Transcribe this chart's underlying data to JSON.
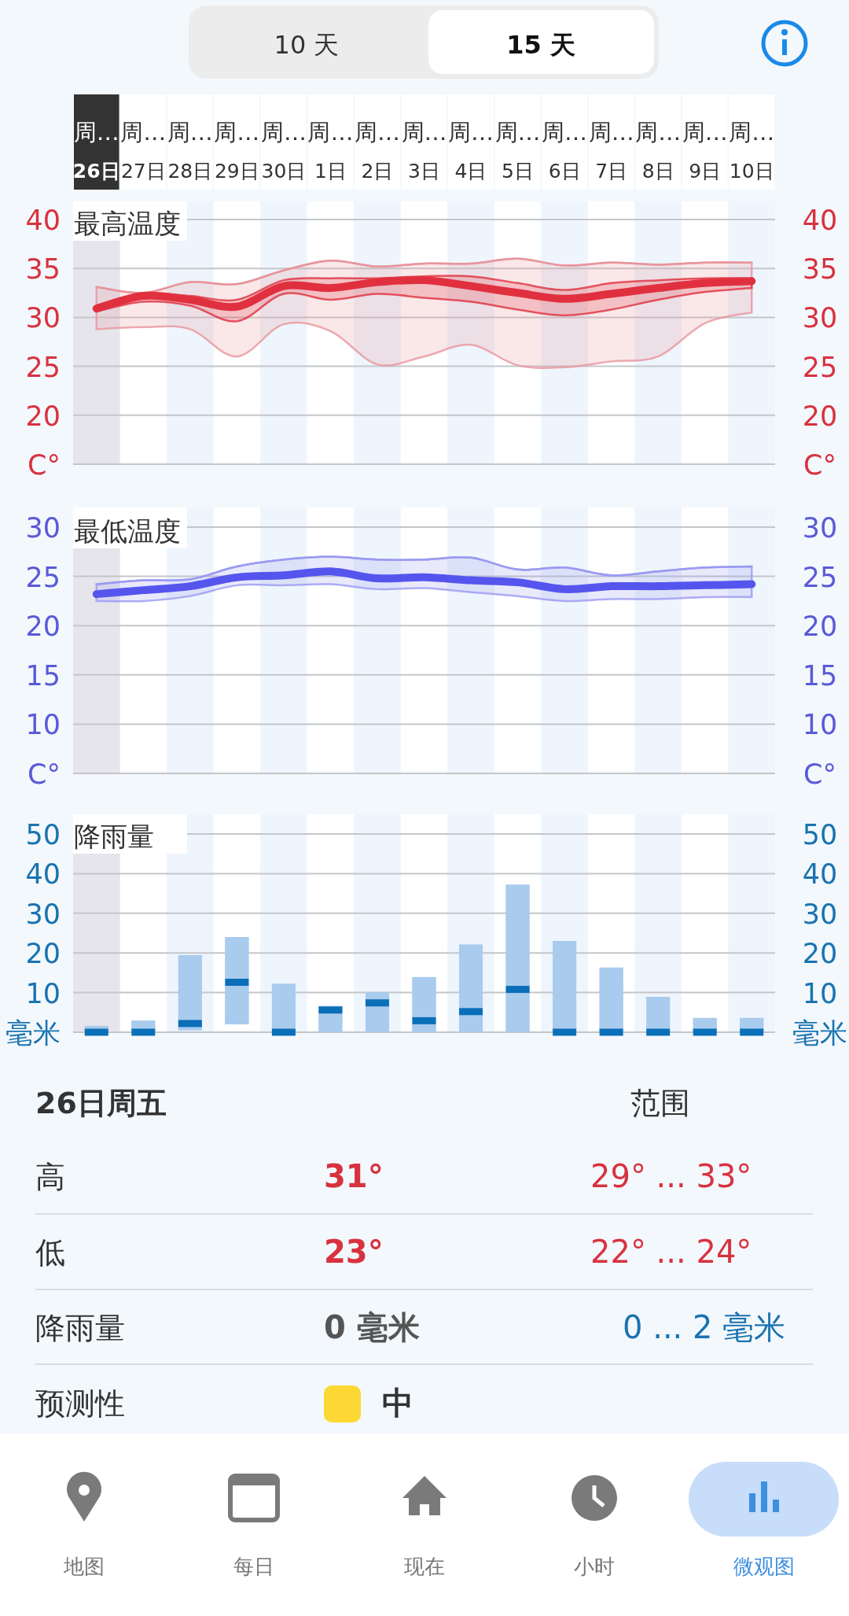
{
  "chart_data": [
    {
      "type": "line",
      "title": "最高温度",
      "categories": [
        "周…\n26日",
        "周…\n27日",
        "周…\n28日",
        "周…\n29日",
        "周…\n30日",
        "周…\n1日",
        "周…\n2日",
        "周…\n3日",
        "周…\n4日",
        "周…\n5日",
        "周…\n6日",
        "周…\n7日",
        "周…\n8日",
        "周…\n9日",
        "周…\n10日"
      ],
      "bands": [
        {
          "axis": "x",
          "from": "周…\n26日",
          "to": "周…\n26日",
          "color": "#e6e5ec"
        }
      ],
      "ylim": [
        15,
        40
      ],
      "yticks": [
        {
          "value": 15,
          "label": "C°"
        },
        20,
        25,
        30,
        35,
        40
      ],
      "y2lim": [
        15,
        40
      ],
      "y2ticks": [
        {
          "value": 15,
          "label": "C°"
        },
        20,
        25,
        30,
        35,
        40
      ],
      "grid": "y",
      "series": [
        {
          "color": "#e8959d",
          "values": [
            33.1,
            32.5,
            33.6,
            33.4,
            34.8,
            35.8,
            35.2,
            35.5,
            35.5,
            36.0,
            35.3,
            35.6,
            35.4,
            35.6,
            35.6
          ],
          "lower": [
            28.8,
            29.0,
            28.8,
            26.0,
            29.3,
            28.6,
            25.2,
            26.0,
            27.2,
            25.1,
            24.9,
            25.5,
            26.0,
            29.4,
            30.5
          ],
          "upper": [
            33.1,
            32.5,
            33.6,
            33.4,
            34.8,
            35.8,
            35.2,
            35.5,
            35.5,
            36.0,
            35.3,
            35.6,
            35.4,
            35.6,
            35.6
          ]
        },
        {
          "color": "#e0303f",
          "values": [
            30.9,
            32.2,
            31.8,
            31.1,
            33.2,
            33.0,
            33.6,
            33.8,
            33.2,
            32.5,
            31.9,
            32.4,
            33.0,
            33.5,
            33.7
          ],
          "lower": [
            30.6,
            31.6,
            31.2,
            29.6,
            32.4,
            31.8,
            32.4,
            32.0,
            31.6,
            30.8,
            30.2,
            30.8,
            31.8,
            32.6,
            33.0
          ],
          "upper": [
            31.2,
            32.4,
            32.2,
            31.8,
            33.8,
            34.0,
            34.0,
            34.2,
            34.2,
            33.5,
            32.8,
            33.5,
            33.8,
            34.0,
            34.0
          ]
        }
      ]
    },
    {
      "type": "line",
      "title": "最低温度",
      "categories": [
        "周…\n26日",
        "周…\n27日",
        "周…\n28日",
        "周…\n29日",
        "周…\n30日",
        "周…\n1日",
        "周…\n2日",
        "周…\n3日",
        "周…\n4日",
        "周…\n5日",
        "周…\n6日",
        "周…\n7日",
        "周…\n8日",
        "周…\n9日",
        "周…\n10日"
      ],
      "tick_labels": "y",
      "bands": [
        {
          "axis": "x",
          "from": "周…\n26日",
          "to": "周…\n26日",
          "color": "#e6e5ec"
        }
      ],
      "ylim": [
        5,
        30
      ],
      "yticks": [
        {
          "value": 5,
          "label": "C°"
        },
        10,
        15,
        20,
        25,
        30
      ],
      "y2lim": [
        5,
        30
      ],
      "y2ticks": [
        {
          "value": 5,
          "label": "C°"
        },
        10,
        15,
        20,
        25,
        30
      ],
      "grid": "y",
      "series": [
        {
          "color": "#9a9af2",
          "values": [
            24.2,
            24.6,
            24.7,
            26.0,
            26.7,
            27.0,
            26.7,
            26.7,
            26.9,
            25.7,
            25.9,
            25.1,
            25.5,
            25.9,
            26.0
          ],
          "lower": [
            22.5,
            22.5,
            23.0,
            24.1,
            24.1,
            24.2,
            23.7,
            23.8,
            23.4,
            23.0,
            22.5,
            22.7,
            22.7,
            22.9,
            22.9
          ],
          "upper": [
            24.2,
            24.6,
            24.7,
            26.0,
            26.7,
            27.0,
            26.7,
            26.7,
            26.9,
            25.7,
            25.9,
            25.1,
            25.5,
            25.9,
            26.0
          ]
        },
        {
          "color": "#5555ee",
          "values": [
            23.2,
            23.6,
            24.0,
            24.9,
            25.1,
            25.5,
            24.8,
            24.9,
            24.6,
            24.4,
            23.7,
            24.0,
            24.0,
            24.1,
            24.2
          ]
        }
      ]
    },
    {
      "type": "box",
      "title": "降雨量",
      "categories": [
        "周…\n26日",
        "周…\n27日",
        "周…\n28日",
        "周…\n29日",
        "周…\n30日",
        "周…\n1日",
        "周…\n2日",
        "周…\n3日",
        "周…\n4日",
        "周…\n5日",
        "周…\n6日",
        "周…\n7日",
        "周…\n8日",
        "周…\n9日",
        "周…\n10日"
      ],
      "tick_labels": "y",
      "bands": [
        {
          "axis": "x",
          "from": "周…\n26日",
          "to": "周…\n26日",
          "color": "#e6e5ec"
        }
      ],
      "ylim": [
        0,
        50
      ],
      "yticks": [
        {
          "value": 0,
          "label": "毫米"
        },
        10,
        20,
        30,
        40,
        50
      ],
      "y2lim": [
        0,
        50
      ],
      "y2ticks": [
        {
          "value": 0,
          "label": "毫米"
        },
        10,
        20,
        30,
        40,
        50
      ],
      "grid": "y",
      "series": [
        {
          "color": "#a9cbee",
          "boxes": [
            {
              "low": 0,
              "q1": 0,
              "median": 0,
              "q3": 1.6,
              "high": 1.6
            },
            {
              "low": 0,
              "q1": 0,
              "median": 0,
              "q3": 2.9,
              "high": 2.9
            },
            {
              "low": 0.5,
              "q1": 0.5,
              "median": 2.2,
              "q3": 19.4,
              "high": 19.4
            },
            {
              "low": 2.0,
              "q1": 2.0,
              "median": 12.6,
              "q3": 24.0,
              "high": 24.0
            },
            {
              "low": 0,
              "q1": 0,
              "median": 0,
              "q3": 12.2,
              "high": 12.2
            },
            {
              "low": 0,
              "q1": 0,
              "median": 5.6,
              "q3": 6.6,
              "high": 6.6
            },
            {
              "low": 0,
              "q1": 0,
              "median": 7.4,
              "q3": 10.1,
              "high": 10.1
            },
            {
              "low": 0,
              "q1": 0,
              "median": 2.9,
              "q3": 13.9,
              "high": 13.9
            },
            {
              "low": 0,
              "q1": 0,
              "median": 5.2,
              "q3": 22.1,
              "high": 22.1
            },
            {
              "low": 0,
              "q1": 0,
              "median": 10.8,
              "q3": 37.2,
              "high": 37.2
            },
            {
              "low": 0,
              "q1": 0,
              "median": 0,
              "q3": 23.0,
              "high": 23.0
            },
            {
              "low": 0,
              "q1": 0,
              "median": 0,
              "q3": 16.3,
              "high": 16.3
            },
            {
              "low": 0,
              "q1": 0,
              "median": 0,
              "q3": 8.9,
              "high": 8.9
            },
            {
              "low": 0,
              "q1": 0,
              "median": 0,
              "q3": 3.6,
              "high": 3.6
            },
            {
              "low": 0,
              "q1": 0,
              "median": 0,
              "q3": 3.6,
              "high": 3.6
            }
          ]
        }
      ]
    },
    {
      "type": "other",
      "annotations": [
        "10 天",
        "15 天",
        "26日周五",
        "范围",
        "高",
        "31°",
        "29° ... 33°",
        "低",
        "23°",
        "22° ... 24°",
        "降雨量",
        "0 毫米",
        "0 ... 2 毫米",
        "预测性",
        "中",
        "地图",
        "每日",
        "现在",
        "小时",
        "微观图"
      ]
    }
  ]
}
